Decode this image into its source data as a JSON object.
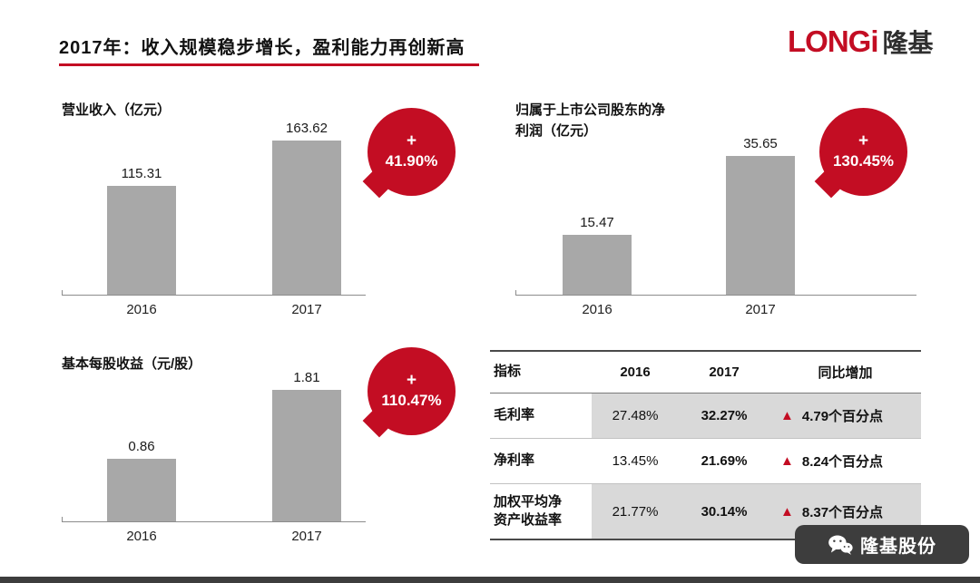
{
  "header": {
    "title": "2017年：收入规模稳步增长，盈利能力再创新高",
    "logo_en": "LONGi",
    "logo_cn": "隆基"
  },
  "icons": {
    "up_triangle": "▲",
    "wechat": "wechat-icon"
  },
  "colors": {
    "brand_red": "#c30d23",
    "bar_gray": "#a8a8a8",
    "table_shade": "#d9d9d9",
    "footer_dark": "#3d3d3d"
  },
  "chart_data": [
    {
      "type": "bar",
      "title": "营业收入（亿元）",
      "categories": [
        "2016",
        "2017"
      ],
      "values": [
        115.31,
        163.62
      ],
      "ylim": [
        0,
        163.62
      ],
      "badge": {
        "sign": "+",
        "value": "41.90%"
      }
    },
    {
      "type": "bar",
      "title": "归属于上市公司股东的净利润（亿元）",
      "categories": [
        "2016",
        "2017"
      ],
      "values": [
        15.47,
        35.65
      ],
      "ylim": [
        0,
        35.65
      ],
      "badge": {
        "sign": "+",
        "value": "130.45%"
      }
    },
    {
      "type": "bar",
      "title": "基本每股收益（元/股）",
      "categories": [
        "2016",
        "2017"
      ],
      "values": [
        0.86,
        1.81
      ],
      "ylim": [
        0,
        1.81
      ],
      "badge": {
        "sign": "+",
        "value": "110.47%"
      }
    },
    {
      "type": "table",
      "headers": [
        "指标",
        "2016",
        "2017",
        "同比增加"
      ],
      "rows": [
        [
          "毛利率",
          "27.48%",
          "32.27%",
          "4.79个百分点"
        ],
        [
          "净利率",
          "13.45%",
          "21.69%",
          "8.24个百分点"
        ],
        [
          "加权平均净资产收益率",
          "21.77%",
          "30.14%",
          "8.37个百分点"
        ]
      ]
    }
  ],
  "footer": {
    "watermark": "隆基股份"
  }
}
